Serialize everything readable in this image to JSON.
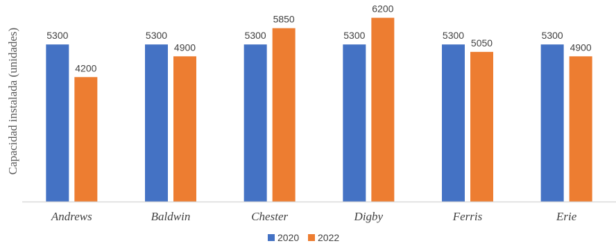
{
  "chart_data": {
    "type": "bar",
    "title": "",
    "xlabel": "",
    "ylabel": "Capacidad instalada (unidades)",
    "categories": [
      "Andrews",
      "Baldwin",
      "Chester",
      "Digby",
      "Ferris",
      "Erie"
    ],
    "series": [
      {
        "name": "2020",
        "color": "#4472C4",
        "values": [
          5300,
          5300,
          5300,
          5300,
          5300,
          5300
        ]
      },
      {
        "name": "2022",
        "color": "#ED7D31",
        "values": [
          4200,
          4900,
          5850,
          6200,
          5050,
          4900
        ]
      }
    ],
    "ylim": [
      0,
      6800
    ],
    "grid": false,
    "legend_position": "bottom",
    "data_labels": true
  }
}
